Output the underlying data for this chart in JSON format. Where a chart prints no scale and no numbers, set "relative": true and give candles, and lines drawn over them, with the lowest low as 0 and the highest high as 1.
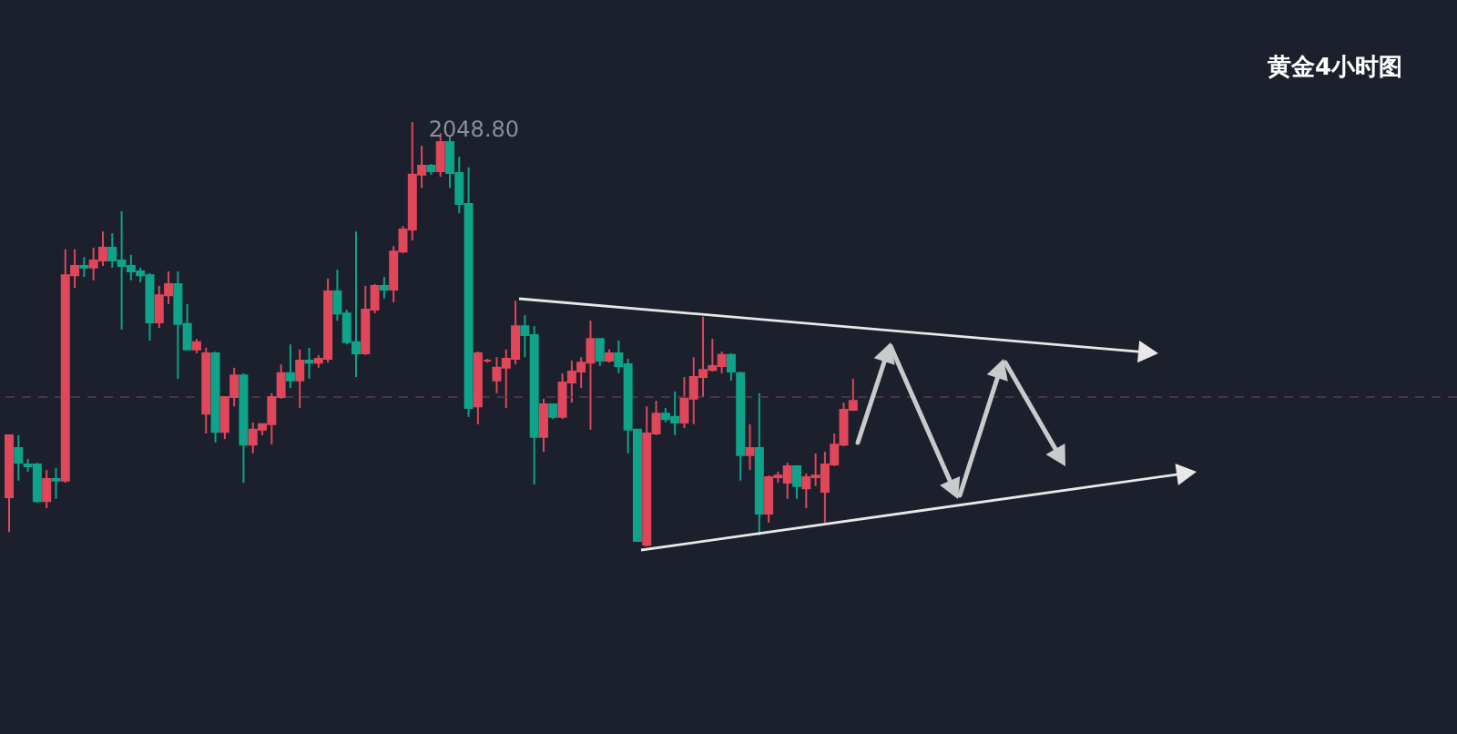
{
  "chart_data": {
    "type": "candlestick",
    "title": "黄金4小时图",
    "relative": true,
    "categories": [
      null,
      null,
      null,
      null,
      null,
      null,
      null,
      null,
      null,
      null,
      null,
      null,
      null,
      null,
      null,
      null,
      null,
      null,
      null,
      null,
      null,
      null,
      null,
      null,
      null,
      null,
      null,
      null,
      null,
      null,
      null,
      null,
      null,
      null,
      null,
      null,
      null,
      null,
      null,
      null,
      null,
      null,
      null,
      null,
      null,
      null,
      null,
      null,
      null,
      null,
      null,
      null,
      null,
      null,
      null,
      null,
      null,
      null,
      null,
      null,
      null,
      null,
      null,
      null,
      null,
      null,
      null,
      null,
      null,
      null,
      null,
      null,
      null,
      null,
      null,
      null,
      null,
      null,
      null,
      null,
      null,
      null,
      null,
      null,
      null,
      null,
      null,
      null,
      null,
      null,
      null
    ],
    "ohlc": [
      [
        0.116,
        0.262,
        0.034,
        0.262
      ],
      [
        0.232,
        0.262,
        0.155,
        0.197
      ],
      [
        0.193,
        0.206,
        0.176,
        0.189
      ],
      [
        0.193,
        0.197,
        0.103,
        0.107
      ],
      [
        0.107,
        0.18,
        0.09,
        0.159
      ],
      [
        0.159,
        0.185,
        0.112,
        0.155
      ],
      [
        0.155,
        0.7,
        0.15,
        0.639
      ],
      [
        0.639,
        0.7,
        0.609,
        0.661
      ],
      [
        0.661,
        0.682,
        0.635,
        0.657
      ],
      [
        0.657,
        0.704,
        0.627,
        0.674
      ],
      [
        0.674,
        0.742,
        0.661,
        0.704
      ],
      [
        0.704,
        0.738,
        0.657,
        0.674
      ],
      [
        0.674,
        0.79,
        0.511,
        0.661
      ],
      [
        0.661,
        0.687,
        0.627,
        0.648
      ],
      [
        0.648,
        0.657,
        0.622,
        0.639
      ],
      [
        0.639,
        0.644,
        0.485,
        0.528
      ],
      [
        0.528,
        0.614,
        0.515,
        0.592
      ],
      [
        0.592,
        0.648,
        0.571,
        0.618
      ],
      [
        0.618,
        0.648,
        0.395,
        0.524
      ],
      [
        0.524,
        0.571,
        0.464,
        0.464
      ],
      [
        0.464,
        0.489,
        0.455,
        0.481
      ],
      [
        0.313,
        0.468,
        0.266,
        0.455
      ],
      [
        0.455,
        0.459,
        0.245,
        0.27
      ],
      [
        0.27,
        0.352,
        0.253,
        0.352
      ],
      [
        0.352,
        0.421,
        0.33,
        0.403
      ],
      [
        0.403,
        0.408,
        0.15,
        0.24
      ],
      [
        0.24,
        0.292,
        0.219,
        0.275
      ],
      [
        0.275,
        0.288,
        0.262,
        0.288
      ],
      [
        0.288,
        0.361,
        0.24,
        0.352
      ],
      [
        0.352,
        0.429,
        0.348,
        0.408
      ],
      [
        0.408,
        0.476,
        0.373,
        0.391
      ],
      [
        0.391,
        0.464,
        0.326,
        0.438
      ],
      [
        0.438,
        0.468,
        0.395,
        0.433
      ],
      [
        0.433,
        0.451,
        0.421,
        0.442
      ],
      [
        0.442,
        0.631,
        0.433,
        0.601
      ],
      [
        0.601,
        0.652,
        0.532,
        0.549
      ],
      [
        0.549,
        0.558,
        0.476,
        0.481
      ],
      [
        0.481,
        0.742,
        0.399,
        0.455
      ],
      [
        0.455,
        0.614,
        0.451,
        0.558
      ],
      [
        0.558,
        0.618,
        0.549,
        0.614
      ],
      [
        0.614,
        0.635,
        0.584,
        0.605
      ],
      [
        0.605,
        0.708,
        0.575,
        0.695
      ],
      [
        0.695,
        0.755,
        0.691,
        0.747
      ],
      [
        0.747,
        1,
        0.721,
        0.876
      ],
      [
        0.876,
        0.944,
        0.845,
        0.897
      ],
      [
        0.897,
        0.901,
        0.876,
        0.884
      ],
      [
        0.884,
        0.974,
        0.871,
        0.953
      ],
      [
        0.953,
        0.966,
        0.845,
        0.88
      ],
      [
        0.88,
        0.918,
        0.785,
        0.807
      ],
      [
        0.807,
        0.893,
        0.305,
        0.326
      ],
      [
        0.33,
        0.459,
        0.288,
        0.455
      ],
      [
        0.438,
        0.442,
        0.433,
        0.438
      ],
      [
        0.391,
        0.446,
        0.361,
        0.421
      ],
      [
        0.421,
        0.464,
        0.326,
        0.442
      ],
      [
        0.442,
        0.579,
        0.429,
        0.519
      ],
      [
        0.519,
        0.545,
        0.446,
        0.498
      ],
      [
        0.498,
        0.519,
        0.146,
        0.258
      ],
      [
        0.258,
        0.348,
        0.223,
        0.335
      ],
      [
        0.335,
        0.335,
        0.3,
        0.305
      ],
      [
        0.305,
        0.408,
        0.3,
        0.386
      ],
      [
        0.386,
        0.438,
        0.339,
        0.412
      ],
      [
        0.412,
        0.446,
        0.373,
        0.433
      ],
      [
        0.433,
        0.532,
        0.275,
        0.489
      ],
      [
        0.489,
        0.489,
        0.425,
        0.438
      ],
      [
        0.438,
        0.464,
        0.433,
        0.455
      ],
      [
        0.455,
        0.485,
        0.408,
        0.425
      ],
      [
        0.429,
        0.442,
        0.219,
        0.275
      ],
      [
        0.275,
        0.275,
        0.013,
        0.013
      ],
      [
        0.004,
        0.33,
        0,
        0.266
      ],
      [
        0.266,
        0.343,
        0.262,
        0.313
      ],
      [
        0.313,
        0.326,
        0.292,
        0.3
      ],
      [
        0.305,
        0.365,
        0.262,
        0.292
      ],
      [
        0.292,
        0.399,
        0.279,
        0.348
      ],
      [
        0.348,
        0.446,
        0.288,
        0.399
      ],
      [
        0.399,
        0.541,
        0.352,
        0.416
      ],
      [
        0.416,
        0.489,
        0.412,
        0.425
      ],
      [
        0.425,
        0.459,
        0.408,
        0.451
      ],
      [
        0.451,
        0.455,
        0.391,
        0.412
      ],
      [
        0.408,
        0.412,
        0.155,
        0.215
      ],
      [
        0.215,
        0.288,
        0.18,
        0.232
      ],
      [
        0.232,
        0.361,
        0.026,
        0.077
      ],
      [
        0.077,
        0.167,
        0.056,
        0.163
      ],
      [
        0.163,
        0.176,
        0.15,
        0.167
      ],
      [
        0.15,
        0.197,
        0.112,
        0.189
      ],
      [
        0.189,
        0.189,
        0.112,
        0.142
      ],
      [
        0.137,
        0.172,
        0.09,
        0.163
      ],
      [
        0.163,
        0.219,
        0.142,
        0.167
      ],
      [
        0.129,
        0.223,
        0.056,
        0.193
      ],
      [
        0.193,
        0.266,
        0.189,
        0.24
      ],
      [
        0.24,
        0.339,
        0.236,
        0.322
      ],
      [
        0.322,
        0.395,
        0.322,
        0.343
      ]
    ],
    "colors": [
      "#e0475a",
      "#0fa38a",
      "#0fa38a",
      "#0fa38a",
      "#e0475a",
      "#0fa38a",
      "#e0475a",
      "#e0475a",
      "#0fa38a",
      "#e0475a",
      "#e0475a",
      "#0fa38a",
      "#0fa38a",
      "#0fa38a",
      "#0fa38a",
      "#0fa38a",
      "#e0475a",
      "#e0475a",
      "#0fa38a",
      "#0fa38a",
      "#e0475a",
      "#e0475a",
      "#0fa38a",
      "#e0475a",
      "#e0475a",
      "#0fa38a",
      "#e0475a",
      "#e0475a",
      "#e0475a",
      "#e0475a",
      "#0fa38a",
      "#e0475a",
      "#0fa38a",
      "#e0475a",
      "#e0475a",
      "#0fa38a",
      "#0fa38a",
      "#0fa38a",
      "#e0475a",
      "#e0475a",
      "#0fa38a",
      "#e0475a",
      "#e0475a",
      "#e0475a",
      "#e0475a",
      "#0fa38a",
      "#e0475a",
      "#0fa38a",
      "#0fa38a",
      "#0fa38a",
      "#e0475a",
      "#e0475a",
      "#e0475a",
      "#e0475a",
      "#e0475a",
      "#0fa38a",
      "#0fa38a",
      "#e0475a",
      "#0fa38a",
      "#e0475a",
      "#e0475a",
      "#e0475a",
      "#e0475a",
      "#0fa38a",
      "#e0475a",
      "#0fa38a",
      "#0fa38a",
      "#0fa38a",
      "#e0475a",
      "#e0475a",
      "#0fa38a",
      "#0fa38a",
      "#e0475a",
      "#e0475a",
      "#e0475a",
      "#e0475a",
      "#e0475a",
      "#0fa38a",
      "#0fa38a",
      "#e0475a",
      "#0fa38a",
      "#e0475a",
      "#e0475a",
      "#e0475a",
      "#0fa38a",
      "#e0475a",
      "#e0475a",
      "#e0475a",
      "#e0475a",
      "#e0475a",
      "#e0475a"
    ],
    "ref_lines": [
      {
        "axis": "y",
        "value": 0.352,
        "color": "#4b3442",
        "line_style": "dashed"
      }
    ],
    "annotations": [
      "2048.80"
    ]
  }
}
